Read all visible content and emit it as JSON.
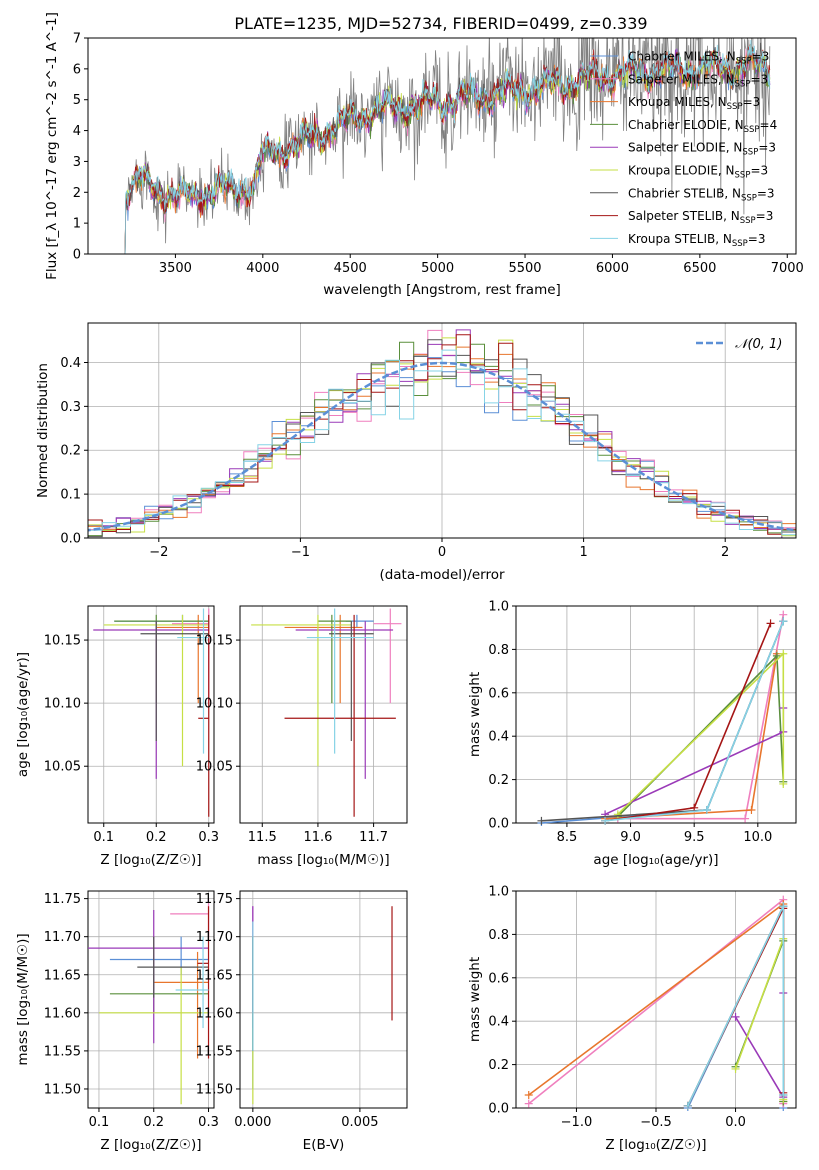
{
  "title": "PLATE=1235, MJD=52734, FIBERID=0499, z=0.339",
  "colors": {
    "chabrier_miles": "#5b8fd6",
    "salpeter_miles": "#ef7fbe",
    "kroupa_miles": "#e8762d",
    "chabrier_elodie": "#5a8f3c",
    "salpeter_elodie": "#9a3ab8",
    "kroupa_elodie": "#c6df45",
    "chabrier_stelib": "#555555",
    "salpeter_stelib": "#a51616",
    "kroupa_stelib": "#86d3e6",
    "data": "#808080",
    "normal": "#5b8fd6"
  },
  "legend_spectrum": {
    "chabrier_miles": {
      "label": "Chabrier MILES, N",
      "sub": "SSP",
      "val": "=3"
    },
    "salpeter_miles": {
      "label": "Salpeter MILES, N",
      "sub": "SSP",
      "val": "=3"
    },
    "kroupa_miles": {
      "label": "Kroupa MILES, N",
      "sub": "SSP",
      "val": "=3"
    },
    "chabrier_elodie": {
      "label": "Chabrier ELODIE, N",
      "sub": "SSP",
      "val": "=4"
    },
    "salpeter_elodie": {
      "label": "Salpeter ELODIE, N",
      "sub": "SSP",
      "val": "=3"
    },
    "kroupa_elodie": {
      "label": "Kroupa ELODIE, N",
      "sub": "SSP",
      "val": "=3"
    },
    "chabrier_stelib": {
      "label": "Chabrier STELIB, N",
      "sub": "SSP",
      "val": "=3"
    },
    "salpeter_stelib": {
      "label": "Salpeter STELIB, N",
      "sub": "SSP",
      "val": "=3"
    },
    "kroupa_stelib": {
      "label": "Kroupa STELIB, N",
      "sub": "SSP",
      "val": "=3"
    }
  },
  "legend_hist": {
    "label": "𝒩(0, 1)"
  },
  "chart_data": [
    {
      "id": "spectrum",
      "type": "line",
      "title": "PLATE=1235, MJD=52734, FIBERID=0499, z=0.339",
      "xlabel": "wavelength [Angstrom, rest frame]",
      "ylabel": "Flux [f_λ 10^-17 erg cm^-2 s^-1 A^-1]",
      "xlim": [
        3000,
        7050
      ],
      "ylim": [
        0,
        7
      ],
      "xticks": [
        3500,
        4000,
        4500,
        5000,
        5500,
        6000,
        6500,
        7000
      ],
      "yticks": [
        0,
        1,
        2,
        3,
        4,
        5,
        6,
        7
      ],
      "xticklabels": [
        "3500",
        "4000",
        "4500",
        "5000",
        "5500",
        "6000",
        "6500",
        "7000"
      ],
      "yticklabels": [
        "0",
        "1",
        "2",
        "3",
        "4",
        "5",
        "6",
        "7"
      ],
      "continuum": [
        [
          3200,
          1.9
        ],
        [
          3300,
          2.4
        ],
        [
          3500,
          1.8
        ],
        [
          3700,
          2.0
        ],
        [
          3950,
          2.2
        ],
        [
          4000,
          3.2
        ],
        [
          4300,
          3.8
        ],
        [
          4600,
          4.6
        ],
        [
          5000,
          4.9
        ],
        [
          5500,
          5.3
        ],
        [
          6000,
          5.8
        ],
        [
          6500,
          6.0
        ],
        [
          6900,
          6.1
        ]
      ],
      "legend_position": "upper right",
      "grid": false
    },
    {
      "id": "residual_hist",
      "type": "step",
      "xlabel": "(data-model)/error",
      "ylabel": "Normed distribution",
      "xlim": [
        -2.5,
        2.5
      ],
      "ylim": [
        0,
        0.49
      ],
      "xticks": [
        -2,
        -1,
        0,
        1,
        2
      ],
      "yticks": [
        0,
        0.1,
        0.2,
        0.3,
        0.4
      ],
      "xticklabels": [
        "−2",
        "−1",
        "0",
        "1",
        "2"
      ],
      "yticklabels": [
        "0.0",
        "0.1",
        "0.2",
        "0.3",
        "0.4"
      ],
      "grid": true,
      "legend_position": "upper right"
    },
    {
      "id": "age_vs_Z",
      "type": "errorbar",
      "xlabel": "Z [log₁₀(Z/Z☉)]",
      "ylabel": "age  [log₁₀(age/yr)]",
      "xlim": [
        0.07,
        0.31
      ],
      "ylim": [
        10.005,
        10.177
      ],
      "xticks": [
        0.1,
        0.2,
        0.3
      ],
      "yticks": [
        10.05,
        10.1,
        10.15
      ],
      "xticklabels": [
        "0.1",
        "0.2",
        "0.3"
      ],
      "yticklabels": [
        "10.05",
        "10.10",
        "10.15"
      ],
      "grid": true
    },
    {
      "id": "age_vs_mass",
      "type": "errorbar",
      "xlabel": "mass [log₁₀(M/M☉)]",
      "ylabel": "",
      "xlim": [
        11.46,
        11.76
      ],
      "ylim": [
        10.005,
        10.177
      ],
      "xticks": [
        11.5,
        11.6,
        11.7
      ],
      "yticks": [
        10.05,
        10.1,
        10.15
      ],
      "xticklabels": [
        "11.5",
        "11.6",
        "11.7"
      ],
      "yticklabels": [
        "10.05",
        "10.10",
        "10.15"
      ],
      "grid": true
    },
    {
      "id": "massweight_vs_age",
      "type": "line",
      "xlabel": "age  [log₁₀(age/yr)]",
      "ylabel": "mass weight",
      "xlim": [
        8.1,
        10.3
      ],
      "ylim": [
        0,
        1
      ],
      "xticks": [
        8.5,
        9.0,
        9.5,
        10.0
      ],
      "yticks": [
        0,
        0.2,
        0.4,
        0.6,
        0.8,
        1.0
      ],
      "xticklabels": [
        "8.5",
        "9.0",
        "9.5",
        "10.0"
      ],
      "yticklabels": [
        "0.0",
        "0.2",
        "0.4",
        "0.6",
        "0.8",
        "1.0"
      ],
      "grid": true
    },
    {
      "id": "mass_vs_Z",
      "type": "errorbar",
      "xlabel": "Z [log₁₀(Z/Z☉)]",
      "ylabel": "mass [log₁₀(M/M☉)]",
      "xlim": [
        0.08,
        0.31
      ],
      "ylim": [
        11.475,
        11.76
      ],
      "xticks": [
        0.1,
        0.2,
        0.3
      ],
      "yticks": [
        11.5,
        11.55,
        11.6,
        11.65,
        11.7,
        11.75
      ],
      "xticklabels": [
        "0.1",
        "0.2",
        "0.3"
      ],
      "yticklabels": [
        "11.50",
        "11.55",
        "11.60",
        "11.65",
        "11.70",
        "11.75"
      ],
      "grid": true
    },
    {
      "id": "mass_vs_ebv",
      "type": "errorbar",
      "xlabel": "E(B-V)",
      "ylabel": "",
      "xlim": [
        -0.0006,
        0.0072
      ],
      "ylim": [
        11.475,
        11.76
      ],
      "xticks": [
        0,
        0.005
      ],
      "yticks": [
        11.5,
        11.55,
        11.6,
        11.65,
        11.7,
        11.75
      ],
      "xticklabels": [
        "0.000",
        "0.005"
      ],
      "yticklabels": [
        "11.50",
        "11.55",
        "11.60",
        "11.65",
        "11.70",
        "11.75"
      ],
      "grid": true
    },
    {
      "id": "massweight_vs_Z",
      "type": "line",
      "xlabel": "Z [log₁₀(Z/Z☉)]",
      "ylabel": "mass weight",
      "xlim": [
        -1.38,
        0.38
      ],
      "ylim": [
        0,
        1
      ],
      "xticks": [
        -1.0,
        -0.5,
        0.0
      ],
      "yticks": [
        0,
        0.2,
        0.4,
        0.6,
        0.8,
        1.0
      ],
      "xticklabels": [
        "−1.0",
        "−0.5",
        "0.0"
      ],
      "yticklabels": [
        "0.0",
        "0.2",
        "0.4",
        "0.6",
        "0.8",
        "1.0"
      ],
      "grid": true
    }
  ],
  "models": [
    {
      "key": "chabrier_miles",
      "Z": 0.25,
      "Zerr": [
        0.12,
        0.3
      ],
      "age": 10.165,
      "ageerr": [
        10.16,
        10.17
      ],
      "mass": 11.67,
      "masserr": [
        11.65,
        11.7
      ],
      "ebv": 0,
      "ebv_err": [
        11.5,
        11.74
      ],
      "aw": [
        [
          8.3,
          0.0
        ],
        [
          9.6,
          0.06
        ],
        [
          10.2,
          0.93
        ]
      ],
      "zw": [
        [
          -0.3,
          0.0
        ],
        [
          0.3,
          0.93
        ],
        [
          0.3,
          0.0
        ]
      ]
    },
    {
      "key": "salpeter_miles",
      "Z": 0.3,
      "Zerr": [
        0.23,
        0.3
      ],
      "age": 10.163,
      "ageerr": [
        10.1,
        10.175
      ],
      "mass": 11.73,
      "masserr": [
        11.7,
        11.75
      ],
      "ebv": 0,
      "ebv_err": [
        11.6,
        11.74
      ],
      "aw": [
        [
          8.9,
          0.02
        ],
        [
          9.9,
          0.02
        ],
        [
          10.2,
          0.96
        ]
      ],
      "zw": [
        [
          -1.3,
          0.02
        ],
        [
          0.3,
          0.96
        ],
        [
          0.3,
          0.02
        ]
      ]
    },
    {
      "key": "kroupa_miles",
      "Z": 0.28,
      "Zerr": [
        0.2,
        0.3
      ],
      "age": 10.16,
      "ageerr": [
        10.1,
        10.17
      ],
      "mass": 11.64,
      "masserr": [
        11.54,
        11.68
      ],
      "ebv": 0,
      "ebv_err": [
        11.55,
        11.7
      ],
      "aw": [
        [
          8.8,
          0.02
        ],
        [
          9.95,
          0.06
        ],
        [
          10.15,
          0.78
        ]
      ],
      "zw": [
        [
          -1.3,
          0.06
        ],
        [
          0.3,
          0.94
        ],
        [
          0.3,
          0.03
        ]
      ]
    },
    {
      "key": "chabrier_elodie",
      "Z": 0.2,
      "Zerr": [
        0.12,
        0.3
      ],
      "age": 10.165,
      "ageerr": [
        10.1,
        10.17
      ],
      "mass": 11.625,
      "masserr": [
        11.6,
        11.66
      ],
      "ebv": 0,
      "ebv_err": [
        11.55,
        11.7
      ],
      "aw": [
        [
          8.9,
          0.03
        ],
        [
          10.15,
          0.77
        ],
        [
          10.2,
          0.19
        ]
      ],
      "zw": [
        [
          0.0,
          0.19
        ],
        [
          0.3,
          0.77
        ],
        [
          0.3,
          0.03
        ]
      ]
    },
    {
      "key": "salpeter_elodie",
      "Z": 0.2,
      "Zerr": [
        0.08,
        0.3
      ],
      "age": 10.158,
      "ageerr": [
        10.04,
        10.165
      ],
      "mass": 11.685,
      "masserr": [
        11.56,
        11.735
      ],
      "ebv": 0,
      "ebv_err": [
        11.6,
        11.74
      ],
      "aw": [
        [
          8.8,
          0.04
        ],
        [
          10.2,
          0.42
        ],
        [
          10.2,
          0.53
        ]
      ],
      "zw": [
        [
          0.0,
          0.42
        ],
        [
          0.3,
          0.05
        ],
        [
          0.3,
          0.53
        ]
      ]
    },
    {
      "key": "kroupa_elodie",
      "Z": 0.25,
      "Zerr": [
        0.1,
        0.3
      ],
      "age": 10.162,
      "ageerr": [
        10.05,
        10.17
      ],
      "mass": 11.6,
      "masserr": [
        11.48,
        11.66
      ],
      "ebv": 0,
      "ebv_err": [
        11.48,
        11.58
      ],
      "aw": [
        [
          8.9,
          0.04
        ],
        [
          10.2,
          0.78
        ],
        [
          10.2,
          0.18
        ]
      ],
      "zw": [
        [
          0.0,
          0.18
        ],
        [
          0.3,
          0.78
        ],
        [
          0.3,
          0.04
        ]
      ]
    },
    {
      "key": "chabrier_stelib",
      "Z": 0.2,
      "Zerr": [
        0.17,
        0.3
      ],
      "age": 10.155,
      "ageerr": [
        10.07,
        10.165
      ],
      "mass": 11.66,
      "masserr": [
        11.62,
        11.7
      ],
      "ebv": 0,
      "ebv_err": [
        11.55,
        11.7
      ],
      "aw": [
        [
          8.3,
          0.01
        ],
        [
          9.6,
          0.06
        ],
        [
          10.2,
          0.93
        ]
      ],
      "zw": [
        [
          -0.3,
          0.01
        ],
        [
          0.3,
          0.93
        ],
        [
          0.3,
          0.06
        ]
      ]
    },
    {
      "key": "salpeter_stelib",
      "Z": 0.3,
      "Zerr": [
        0.28,
        0.3
      ],
      "age": 10.088,
      "ageerr": [
        10.01,
        10.17
      ],
      "mass": 11.665,
      "masserr": [
        11.54,
        11.74
      ],
      "ebv": 0.0065,
      "ebv_err": [
        11.59,
        11.74
      ],
      "aw": [
        [
          8.8,
          0.01
        ],
        [
          9.5,
          0.07
        ],
        [
          10.1,
          0.92
        ]
      ],
      "zw": [
        [
          -0.3,
          0.01
        ],
        [
          0.3,
          0.92
        ],
        [
          0.3,
          0.07
        ]
      ]
    },
    {
      "key": "kroupa_stelib",
      "Z": 0.29,
      "Zerr": [
        0.24,
        0.3
      ],
      "age": 10.152,
      "ageerr": [
        10.06,
        10.175
      ],
      "mass": 11.63,
      "masserr": [
        11.58,
        11.7
      ],
      "ebv": 0,
      "ebv_err": [
        11.55,
        11.72
      ],
      "aw": [
        [
          8.8,
          0.01
        ],
        [
          9.6,
          0.06
        ],
        [
          10.2,
          0.93
        ]
      ],
      "zw": [
        [
          -0.3,
          0.01
        ],
        [
          0.3,
          0.93
        ],
        [
          0.3,
          0.06
        ]
      ]
    }
  ]
}
